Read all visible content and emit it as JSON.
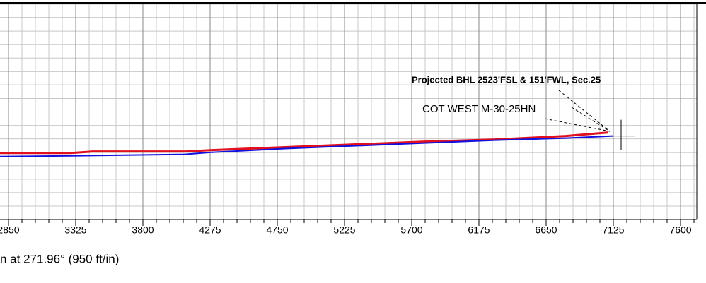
{
  "chart_data": {
    "type": "line",
    "xlim": [
      2790,
      7715
    ],
    "xticks": [
      2850,
      3325,
      3800,
      4275,
      4750,
      5225,
      5700,
      6175,
      6650,
      7125,
      7600
    ],
    "ylim": [
      0,
      1530
    ],
    "yticks": [
      475,
      950,
      1425
    ],
    "grid": true,
    "series": [
      {
        "color": "#e0101e",
        "x": [
          2790,
          3290,
          3440,
          4090,
          4290,
          4790,
          5290,
          5790,
          6290,
          6790,
          7090
        ],
        "values": [
          470,
          470,
          480,
          480,
          490,
          510,
          530,
          550,
          565,
          590,
          615
        ]
      },
      {
        "color": "#1010e0",
        "x": [
          2790,
          3290,
          4090,
          4290,
          4790,
          5290,
          5790,
          6290,
          6790,
          7120
        ],
        "values": [
          445,
          450,
          460,
          475,
          500,
          520,
          540,
          560,
          575,
          590
        ]
      }
    ],
    "target": {
      "x": 7180,
      "y": 590
    },
    "annotations": [
      "Projected BHL 2523'FSL & 151'FWL, Sec.25",
      "COT WEST M-30-25HN"
    ],
    "axis_label": "n at 271.96° (950 ft/in)"
  }
}
